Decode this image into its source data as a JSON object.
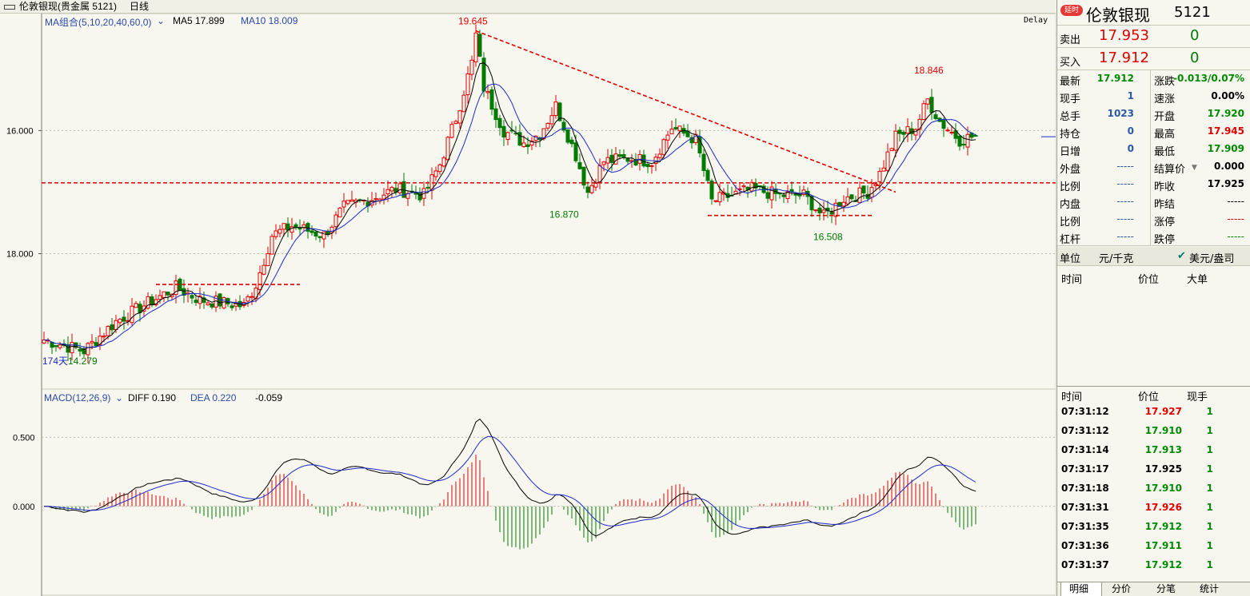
{
  "titlebar": {
    "title": "伦敦银现(贵金属 5121)",
    "period": "日线"
  },
  "chart": {
    "ma_label": "MA组合(5,10,20,40,60,0)",
    "ma5_label": "MA5 17.899",
    "ma10_label": "MA10 18.009",
    "delay": "Delay",
    "y_ticks": [
      "18.000",
      "16.000"
    ],
    "days_label": "174天",
    "price_annotations": [
      "19.645",
      "18.846",
      "16.870",
      "16.508",
      "14.279"
    ],
    "macd_label": "MACD(12,26,9)",
    "diff_label": "DIFF 0.190",
    "dea_label": "DEA 0.220",
    "macd_value": "-0.059",
    "macd_ticks": [
      "0.500",
      "0.000"
    ]
  },
  "panel": {
    "badge": "延时",
    "name": "伦敦银现",
    "code": "5121",
    "sell": {
      "label": "卖出",
      "price": "17.953",
      "vol": "0"
    },
    "buy": {
      "label": "买入",
      "price": "17.912",
      "vol": "0"
    },
    "stats_left": [
      {
        "label": "最新",
        "value": "17.912"
      },
      {
        "label": "现手",
        "value": "1"
      },
      {
        "label": "总手",
        "value": "1023"
      },
      {
        "label": "持仓",
        "value": "0"
      },
      {
        "label": "日增",
        "value": "0"
      },
      {
        "label": "外盘",
        "value": "-----"
      },
      {
        "label": "比例",
        "value": "-----"
      },
      {
        "label": "内盘",
        "value": "-----"
      },
      {
        "label": "比例",
        "value": "-----"
      },
      {
        "label": "杠杆",
        "value": "-----"
      }
    ],
    "stats_right": [
      {
        "label": "涨跌",
        "value": "-0.013/0.07%"
      },
      {
        "label": "速涨",
        "value": "0.00%"
      },
      {
        "label": "开盘",
        "value": "17.920"
      },
      {
        "label": "最高",
        "value": "17.945"
      },
      {
        "label": "最低",
        "value": "17.909"
      },
      {
        "label": "结算价",
        "value": "0.000"
      },
      {
        "label": "昨收",
        "value": "17.925"
      },
      {
        "label": "昨结",
        "value": "-----"
      },
      {
        "label": "涨停",
        "value": "-----"
      },
      {
        "label": "跌停",
        "value": "-----"
      }
    ],
    "unit_label": "单位",
    "unit_value": "元/千克",
    "currency": "美元/盎司",
    "upper_headers": [
      "时间",
      "价位",
      "大单"
    ],
    "tick_headers": [
      "时间",
      "价位",
      "现手"
    ],
    "ticks": [
      {
        "time": "07:31:12",
        "price": "17.927",
        "vol": "1",
        "color": "#e00000"
      },
      {
        "time": "07:31:12",
        "price": "17.910",
        "vol": "1",
        "color": "#008a00"
      },
      {
        "time": "07:31:14",
        "price": "17.913",
        "vol": "1",
        "color": "#008a00"
      },
      {
        "time": "07:31:17",
        "price": "17.925",
        "vol": "1",
        "color": "#000000"
      },
      {
        "time": "07:31:18",
        "price": "17.910",
        "vol": "1",
        "color": "#008a00"
      },
      {
        "time": "07:31:31",
        "price": "17.926",
        "vol": "1",
        "color": "#e00000"
      },
      {
        "time": "07:31:35",
        "price": "17.912",
        "vol": "1",
        "color": "#008a00"
      },
      {
        "time": "07:31:36",
        "price": "17.911",
        "vol": "1",
        "color": "#008a00"
      },
      {
        "time": "07:31:37",
        "price": "17.912",
        "vol": "1",
        "color": "#008a00"
      }
    ],
    "tabs": [
      "明细",
      "分价",
      "分笔",
      "统计"
    ]
  },
  "chart_data": [
    {
      "type": "candlestick",
      "title": "伦敦银现 日线",
      "ylim": [
        13.8,
        19.9
      ],
      "y_ticks": [
        16.0,
        18.0
      ],
      "annotations": [
        {
          "label": "19.645",
          "value": 19.645
        },
        {
          "label": "18.846",
          "value": 18.846
        },
        {
          "label": "16.870",
          "value": 16.87
        },
        {
          "label": "16.508",
          "value": 16.508
        },
        {
          "label": "14.279",
          "value": 14.279
        }
      ],
      "anchors": [
        {
          "i": 0,
          "c": 14.6
        },
        {
          "i": 10,
          "c": 14.42
        },
        {
          "i": 18,
          "c": 14.9
        },
        {
          "i": 26,
          "c": 15.2
        },
        {
          "i": 33,
          "c": 15.45
        },
        {
          "i": 39,
          "c": 15.25
        },
        {
          "i": 45,
          "c": 15.2
        },
        {
          "i": 50,
          "c": 15.15
        },
        {
          "i": 53,
          "c": 15.5
        },
        {
          "i": 57,
          "c": 16.3
        },
        {
          "i": 62,
          "c": 16.45
        },
        {
          "i": 70,
          "c": 16.3
        },
        {
          "i": 75,
          "c": 16.75
        },
        {
          "i": 82,
          "c": 16.9
        },
        {
          "i": 88,
          "c": 17.05
        },
        {
          "i": 95,
          "c": 16.95
        },
        {
          "i": 99,
          "c": 17.45
        },
        {
          "i": 103,
          "c": 18.2
        },
        {
          "i": 107,
          "c": 19.1
        },
        {
          "i": 108,
          "c": 19.55
        },
        {
          "i": 110,
          "c": 18.7
        },
        {
          "i": 115,
          "c": 18.0
        },
        {
          "i": 120,
          "c": 17.8
        },
        {
          "i": 124,
          "c": 17.95
        },
        {
          "i": 128,
          "c": 18.4
        },
        {
          "i": 133,
          "c": 17.6
        },
        {
          "i": 136,
          "c": 17.0
        },
        {
          "i": 140,
          "c": 17.5
        },
        {
          "i": 146,
          "c": 17.55
        },
        {
          "i": 152,
          "c": 17.5
        },
        {
          "i": 157,
          "c": 18.05
        },
        {
          "i": 163,
          "c": 17.85
        },
        {
          "i": 167,
          "c": 16.85
        },
        {
          "i": 172,
          "c": 16.95
        },
        {
          "i": 177,
          "c": 17.05
        },
        {
          "i": 184,
          "c": 16.95
        },
        {
          "i": 190,
          "c": 16.95
        },
        {
          "i": 195,
          "c": 16.6
        },
        {
          "i": 200,
          "c": 16.9
        },
        {
          "i": 206,
          "c": 17.0
        },
        {
          "i": 209,
          "c": 17.3
        },
        {
          "i": 213,
          "c": 17.9
        },
        {
          "i": 218,
          "c": 18.05
        },
        {
          "i": 221,
          "c": 18.5
        },
        {
          "i": 224,
          "c": 18.15
        },
        {
          "i": 229,
          "c": 17.85
        },
        {
          "i": 232,
          "c": 17.9
        }
      ],
      "last": {
        "open": 17.92,
        "high": 17.945,
        "low": 17.909,
        "close": 17.912
      },
      "series": [
        {
          "name": "MA5",
          "value": 17.899
        },
        {
          "name": "MA10",
          "value": 18.009
        }
      ]
    },
    {
      "type": "macd",
      "title": "MACD(12,26,9)",
      "ylim": [
        -0.65,
        0.85
      ],
      "y_ticks": [
        0.0,
        0.5
      ],
      "diff": 0.19,
      "dea": 0.22,
      "macd": -0.059
    }
  ]
}
